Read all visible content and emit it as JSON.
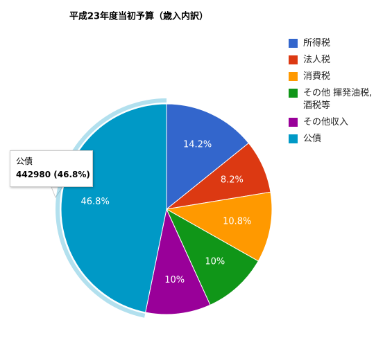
{
  "chart_data": {
    "type": "pie",
    "title": "平成23年度当初予算（歳入内訳）",
    "categories": [
      "所得税",
      "法人税",
      "消費税",
      "その他 揮発油税,酒税等",
      "その他収入",
      "公債"
    ],
    "values": [
      14.2,
      8.2,
      10.8,
      10,
      10,
      46.8
    ],
    "value_labels": [
      "14.2%",
      "8.2%",
      "10.8%",
      "10%",
      "10%",
      "46.8%"
    ],
    "colors": [
      "#3366cc",
      "#dc3912",
      "#ff9900",
      "#109618",
      "#990099",
      "#0099c6"
    ],
    "legend": "right",
    "highlighted": 5,
    "tooltip": {
      "category": "公債",
      "text": "442980 (46.8%)"
    }
  }
}
